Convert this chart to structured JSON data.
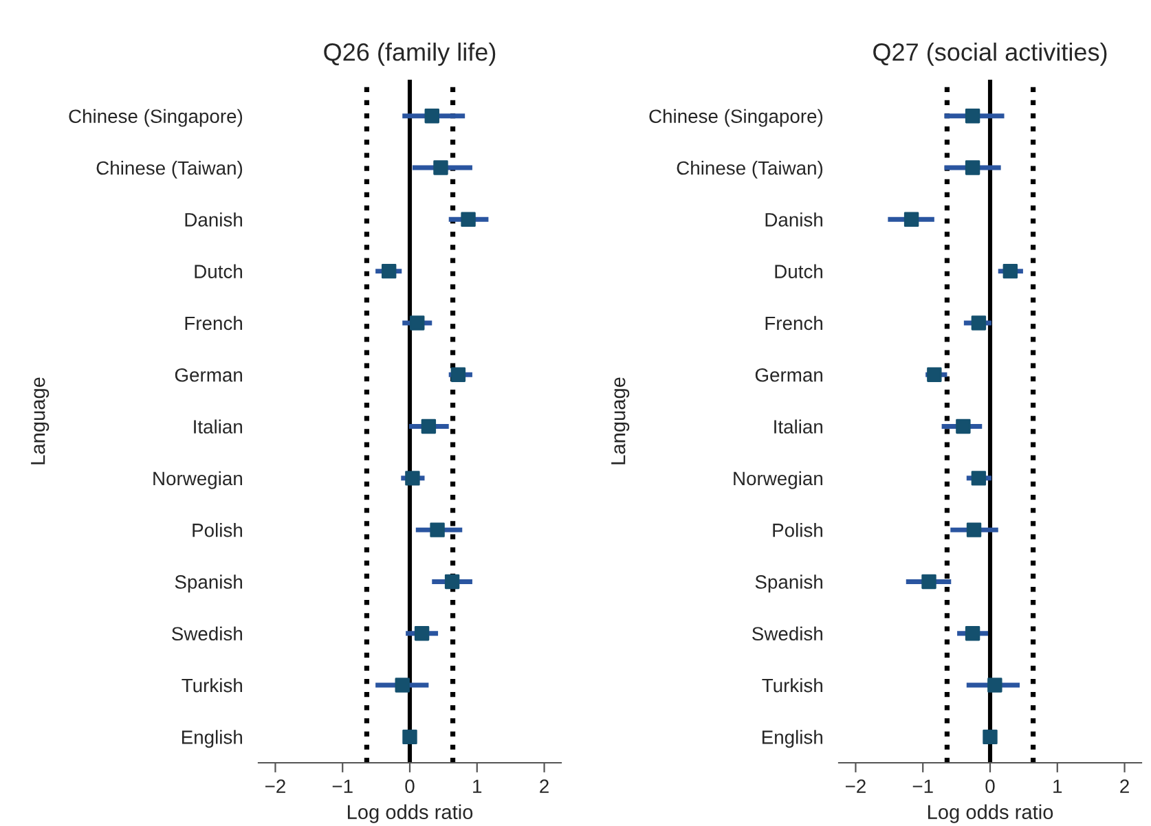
{
  "chart_data": [
    {
      "type": "scatter",
      "orientation": "horizontal",
      "title": "Q26 (family life)",
      "xlabel": "Log odds ratio",
      "ylabel": "Language",
      "marker": "square",
      "grid": false,
      "legend": false,
      "categories": [
        "Chinese (Singapore)",
        "Chinese (Taiwan)",
        "Danish",
        "Dutch",
        "French",
        "German",
        "Italian",
        "Norwegian",
        "Polish",
        "Spanish",
        "Swedish",
        "Turkish",
        "English"
      ],
      "series": [
        {
          "color": "#14506e",
          "values": [
            0.33,
            0.46,
            0.87,
            -0.31,
            0.11,
            0.72,
            0.28,
            0.04,
            0.41,
            0.63,
            0.18,
            -0.11,
            0
          ],
          "errors": [
            [
              -0.11,
              0.82
            ],
            [
              0.04,
              0.93
            ],
            [
              0.58,
              1.17
            ],
            [
              -0.51,
              -0.12
            ],
            [
              -0.11,
              0.33
            ],
            [
              0.58,
              0.93
            ],
            [
              -0.01,
              0.58
            ],
            [
              -0.13,
              0.22
            ],
            [
              0.09,
              0.78
            ],
            [
              0.33,
              0.93
            ],
            [
              -0.06,
              0.42
            ],
            [
              -0.51,
              0.28
            ],
            null
          ]
        }
      ],
      "xlim": [
        -2.25,
        2.25
      ],
      "xticks": [
        -2,
        -1,
        0,
        1,
        2
      ],
      "ref_lines": [
        {
          "axis": "x",
          "value": -0.64,
          "color": "#000000",
          "line_style": "dotted"
        },
        {
          "axis": "x",
          "value": 0,
          "color": "#000000",
          "line_style": "solid"
        },
        {
          "axis": "x",
          "value": 0.64,
          "color": "#000000",
          "line_style": "dotted"
        }
      ]
    },
    {
      "type": "scatter",
      "orientation": "horizontal",
      "title": "Q27 (social activities)",
      "xlabel": "Log odds ratio",
      "ylabel": "Language",
      "marker": "square",
      "grid": false,
      "legend": false,
      "categories": [
        "Chinese (Singapore)",
        "Chinese (Taiwan)",
        "Danish",
        "Dutch",
        "French",
        "German",
        "Italian",
        "Norwegian",
        "Polish",
        "Spanish",
        "Swedish",
        "Turkish",
        "English"
      ],
      "series": [
        {
          "color": "#14506e",
          "values": [
            -0.26,
            -0.26,
            -1.17,
            0.3,
            -0.17,
            -0.83,
            -0.4,
            -0.17,
            -0.24,
            -0.91,
            -0.26,
            0.07,
            0
          ],
          "errors": [
            [
              -0.68,
              0.21
            ],
            [
              -0.68,
              0.16
            ],
            [
              -1.52,
              -0.83
            ],
            [
              0.12,
              0.49
            ],
            [
              -0.39,
              0.02
            ],
            [
              -0.96,
              -0.64
            ],
            [
              -0.72,
              -0.12
            ],
            [
              -0.35,
              0.02
            ],
            [
              -0.59,
              0.12
            ],
            [
              -1.25,
              -0.58
            ],
            [
              -0.49,
              -0.03
            ],
            [
              -0.35,
              0.44
            ],
            null
          ]
        }
      ],
      "xlim": [
        -2.25,
        2.25
      ],
      "xticks": [
        -2,
        -1,
        0,
        1,
        2
      ],
      "ref_lines": [
        {
          "axis": "x",
          "value": -0.64,
          "color": "#000000",
          "line_style": "dotted"
        },
        {
          "axis": "x",
          "value": 0,
          "color": "#000000",
          "line_style": "solid"
        },
        {
          "axis": "x",
          "value": 0.64,
          "color": "#000000",
          "line_style": "dotted"
        }
      ]
    }
  ]
}
